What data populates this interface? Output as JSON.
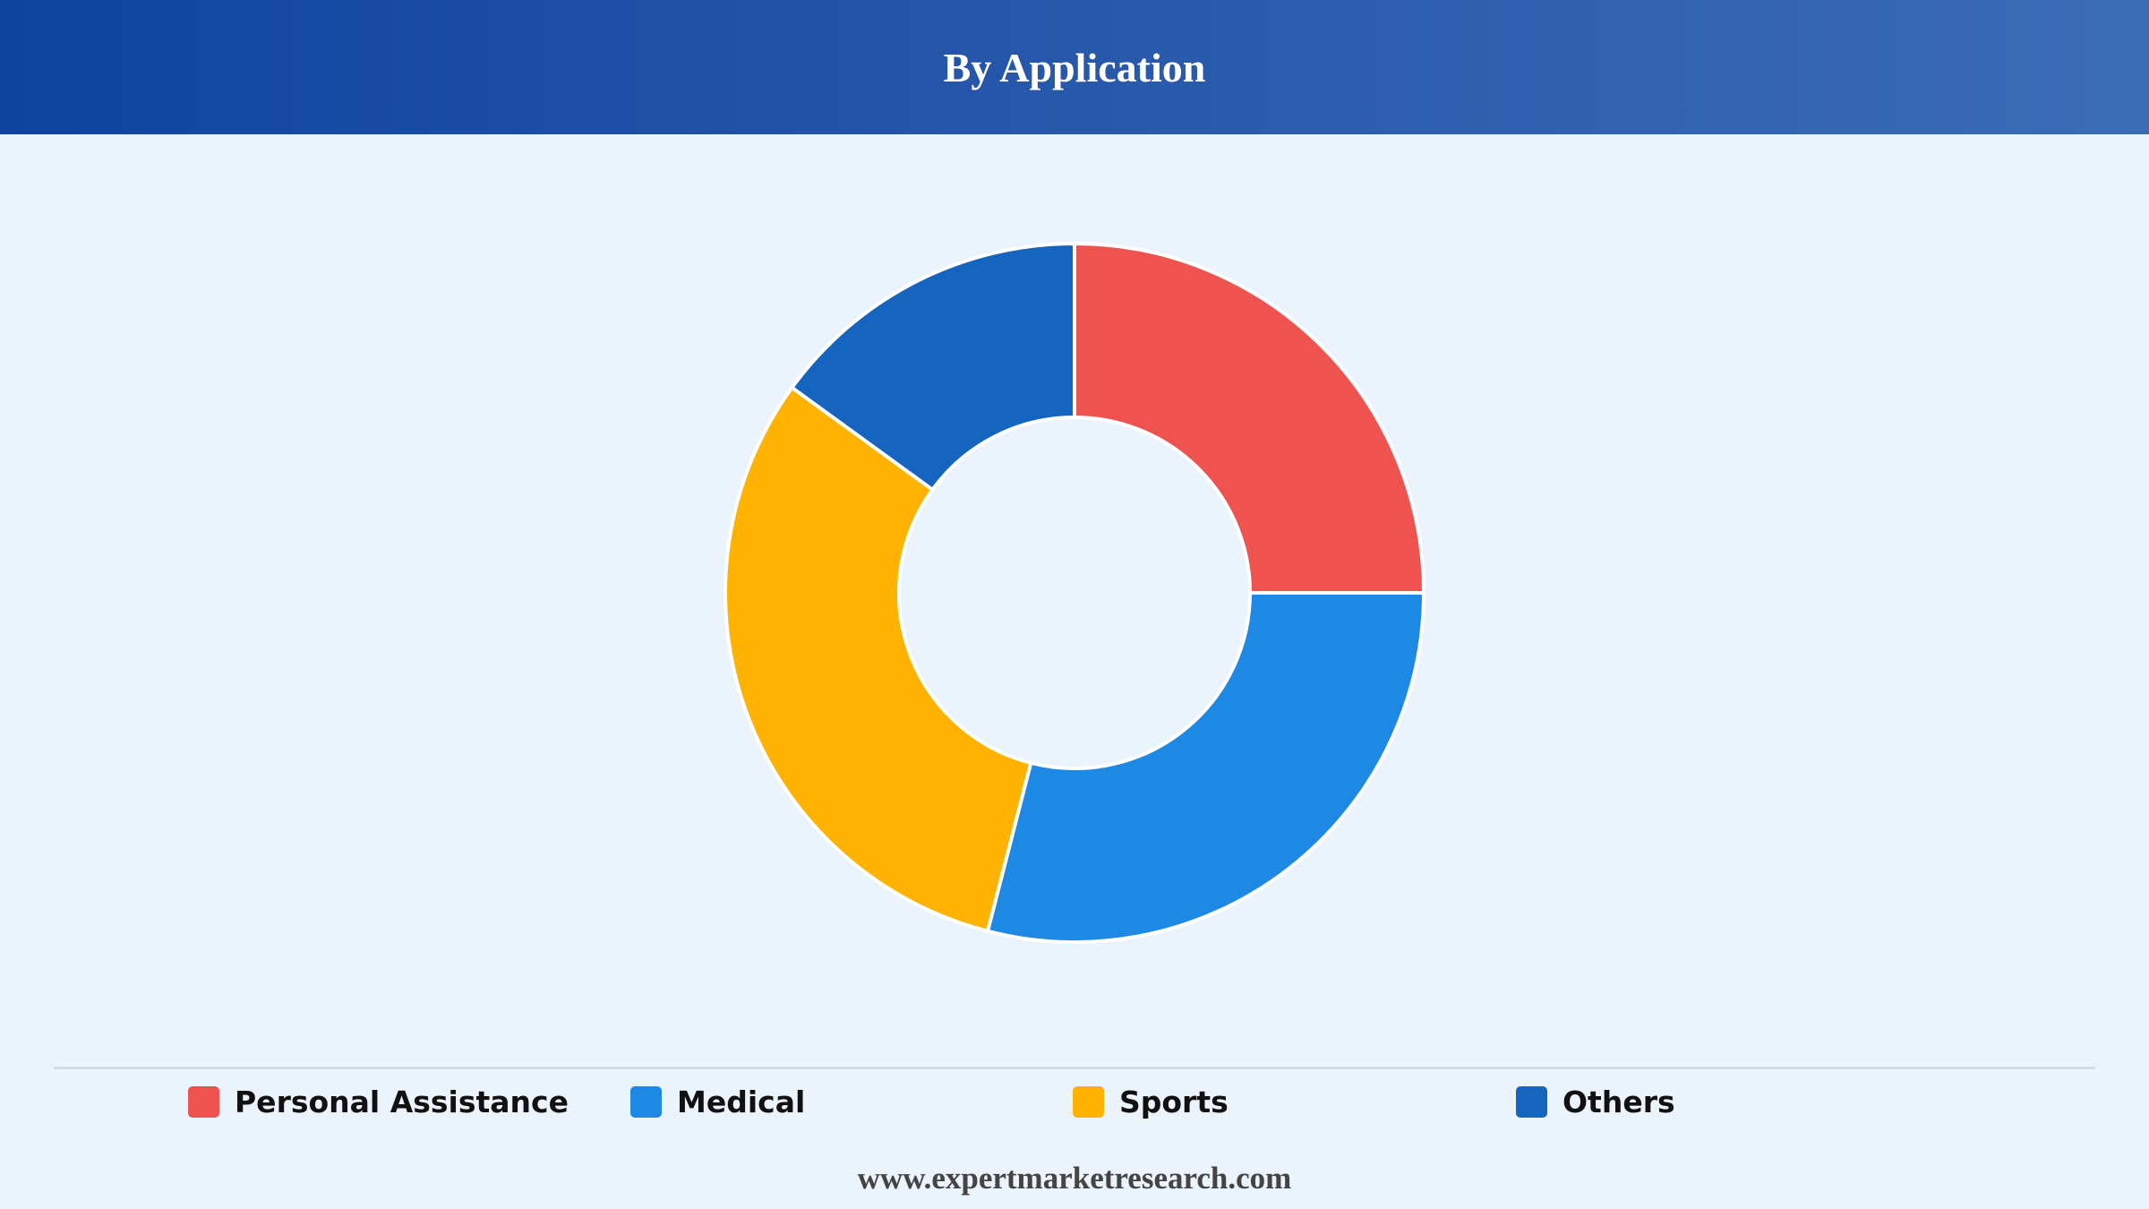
{
  "header": {
    "title": "By Application"
  },
  "chart_data": {
    "type": "pie",
    "title": "By Application",
    "donut": true,
    "categories": [
      "Personal Assistance",
      "Medical",
      "Sports",
      "Others"
    ],
    "values": [
      25,
      29,
      31,
      15
    ],
    "colors": [
      "#ef5350",
      "#1e88e5",
      "#ffb300",
      "#1565c0"
    ],
    "start_angle": "12 o'clock",
    "direction": "clockwise",
    "legend_position": "bottom"
  },
  "footer": {
    "url": "www.expertmarketresearch.com"
  }
}
